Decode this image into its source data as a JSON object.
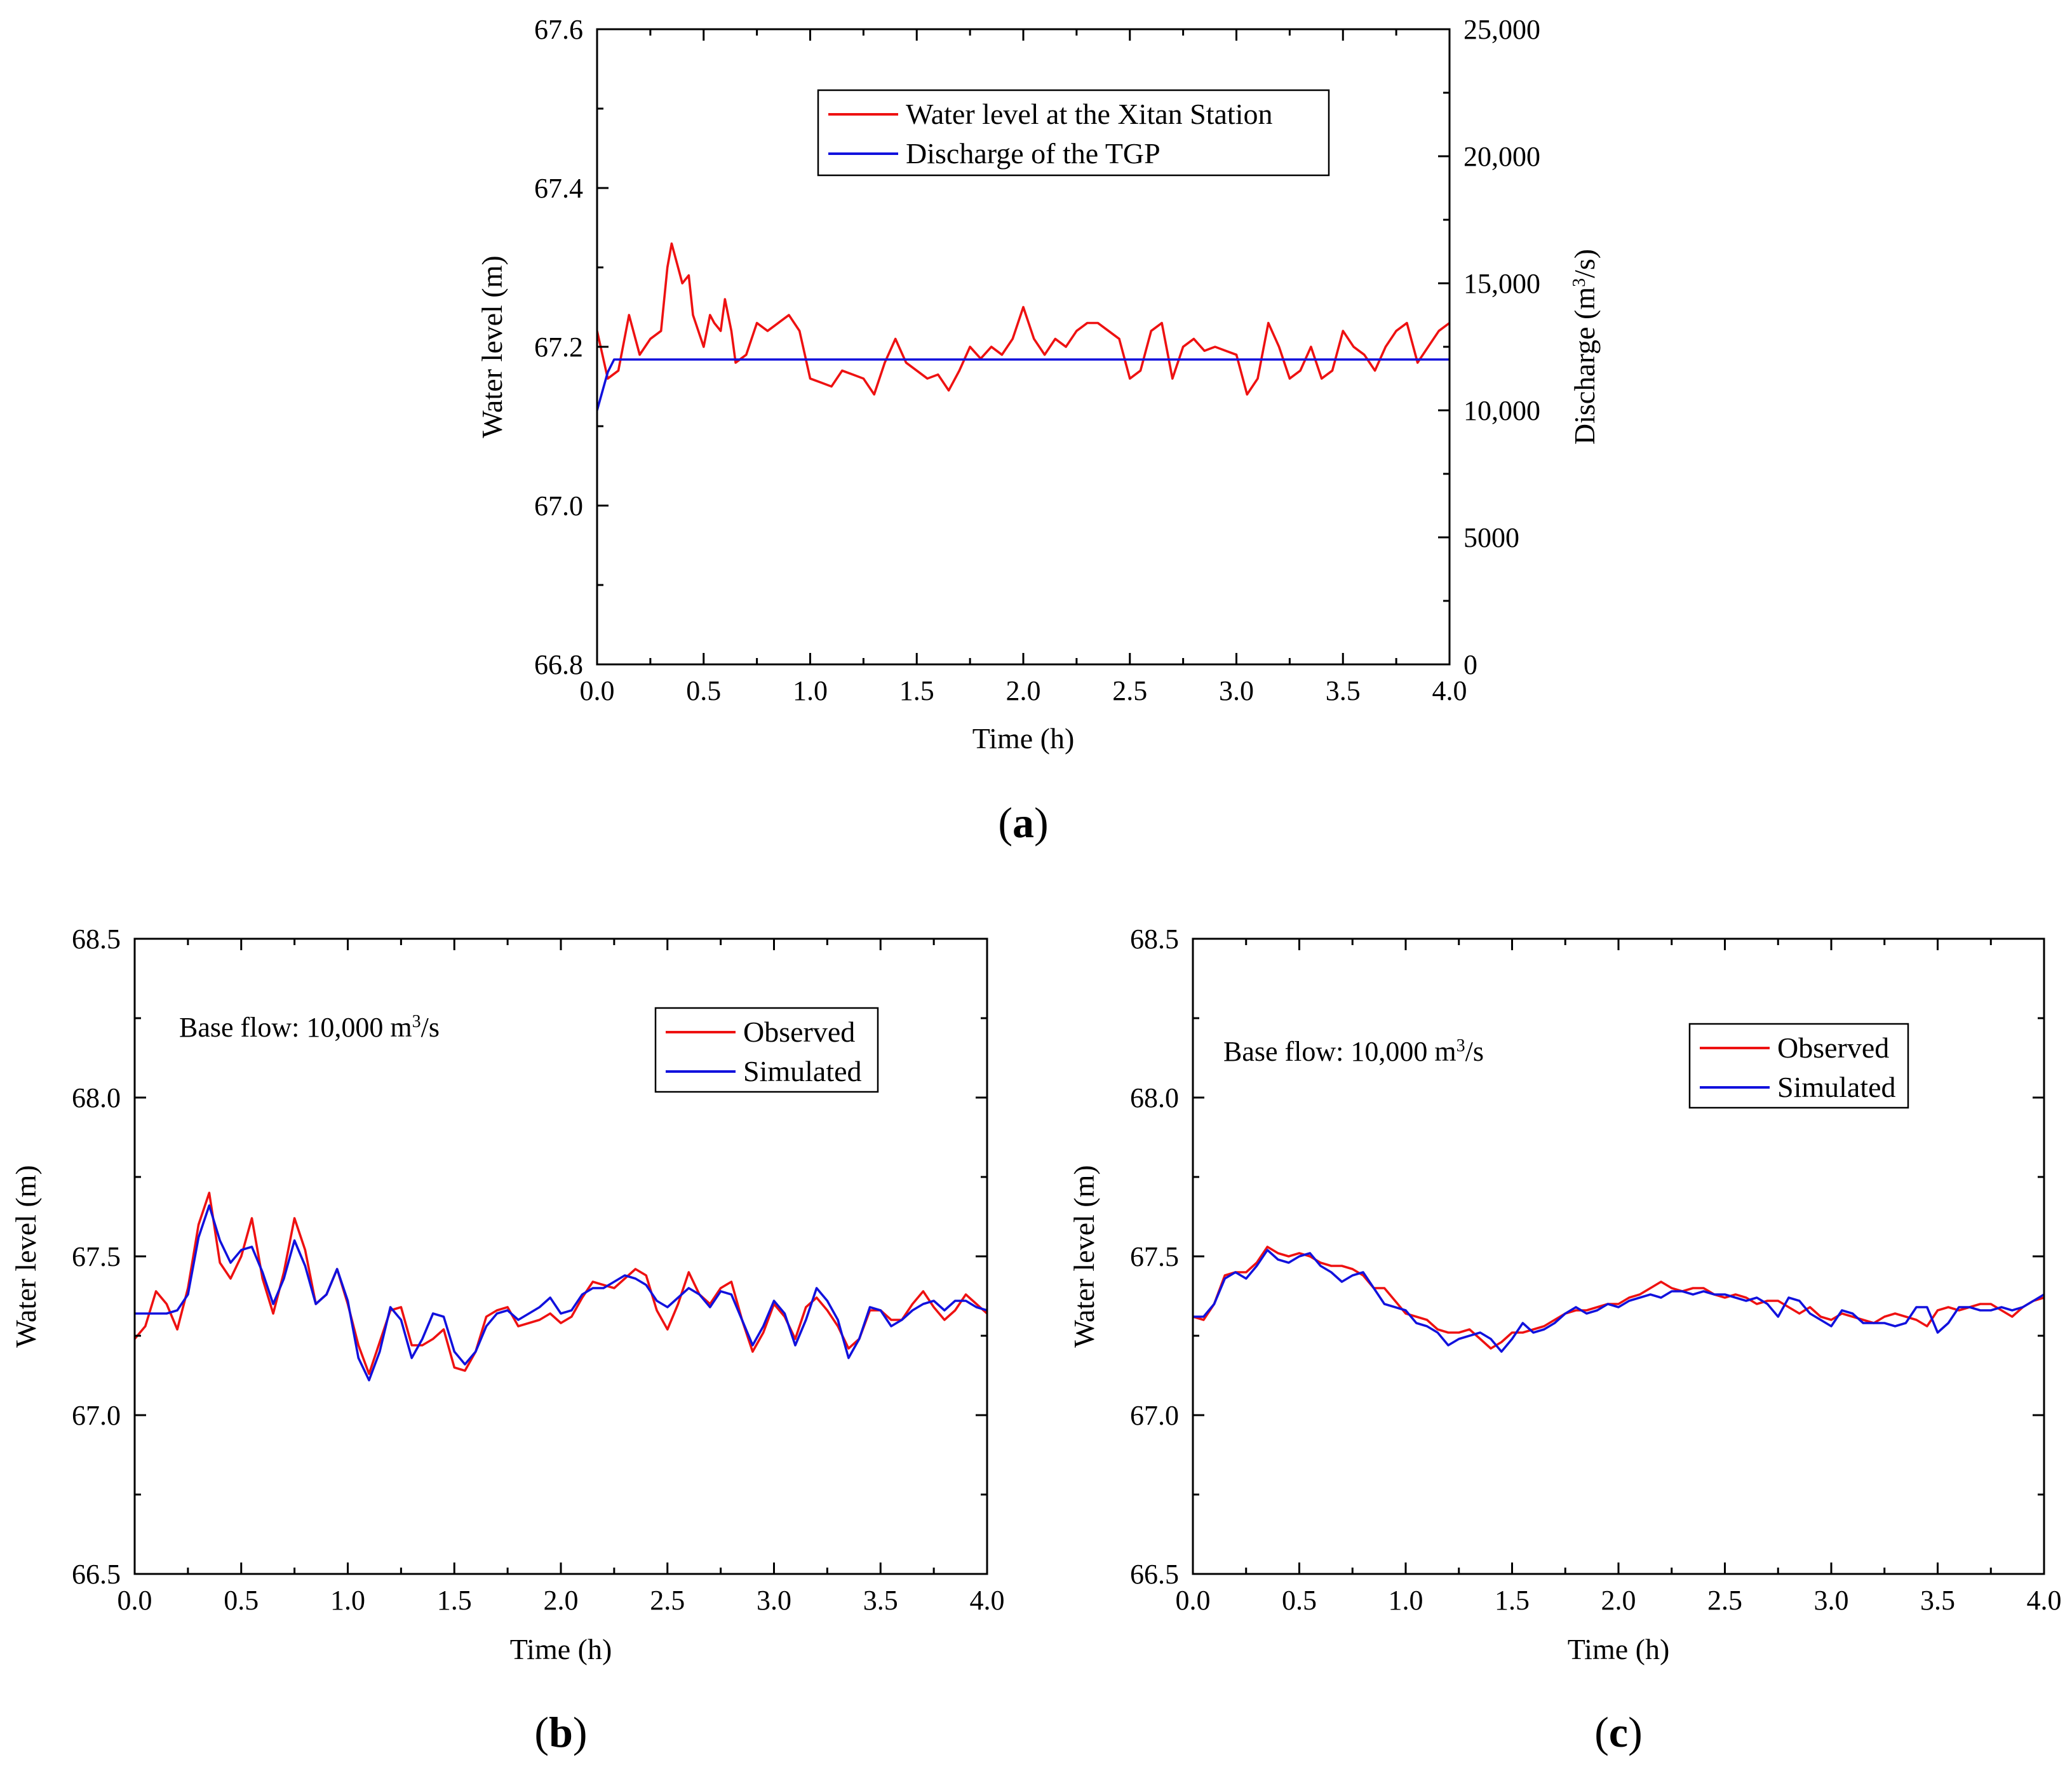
{
  "chart_data": [
    {
      "type": "line",
      "panel_label": "a",
      "xlabel": "Time (h)",
      "ylabel": "Water level (m)",
      "ylabel_right": "Discharge (m³/s)",
      "xlim": [
        0,
        4
      ],
      "ylim": [
        66.8,
        67.6
      ],
      "ylim_right": [
        0,
        25000
      ],
      "x_ticks": [
        "0.0",
        "0.5",
        "1.0",
        "1.5",
        "2.0",
        "2.5",
        "3.0",
        "3.5",
        "4.0"
      ],
      "y_ticks": [
        "66.8",
        "67.0",
        "67.2",
        "67.4",
        "67.6"
      ],
      "y_ticks_right": [
        "0",
        "5000",
        "10,000",
        "15,000",
        "20,000",
        "25,000"
      ],
      "legend": {
        "position": "top-right",
        "entries": [
          {
            "label": "Water level at the Xitan Station",
            "color": "#ee1111"
          },
          {
            "label": "Discharge of the TGP",
            "color": "#1111dd"
          }
        ]
      },
      "series": [
        {
          "name": "Water level at the Xitan Station",
          "axis": "left",
          "color": "#ee1111",
          "x": [
            0,
            0.05,
            0.1,
            0.15,
            0.2,
            0.25,
            0.3,
            0.33,
            0.35,
            0.38,
            0.4,
            0.43,
            0.45,
            0.5,
            0.53,
            0.55,
            0.58,
            0.6,
            0.63,
            0.65,
            0.7,
            0.75,
            0.8,
            0.85,
            0.9,
            0.95,
            1.0,
            1.05,
            1.1,
            1.15,
            1.2,
            1.25,
            1.3,
            1.35,
            1.4,
            1.45,
            1.5,
            1.55,
            1.6,
            1.65,
            1.7,
            1.75,
            1.8,
            1.85,
            1.9,
            1.95,
            2.0,
            2.05,
            2.1,
            2.15,
            2.2,
            2.25,
            2.3,
            2.35,
            2.4,
            2.45,
            2.5,
            2.55,
            2.6,
            2.65,
            2.7,
            2.75,
            2.8,
            2.85,
            2.9,
            2.95,
            3.0,
            3.05,
            3.1,
            3.15,
            3.2,
            3.25,
            3.3,
            3.35,
            3.4,
            3.45,
            3.5,
            3.55,
            3.6,
            3.65,
            3.7,
            3.75,
            3.8,
            3.85,
            3.9,
            3.95,
            4.0
          ],
          "y": [
            67.22,
            67.16,
            67.17,
            67.24,
            67.19,
            67.21,
            67.22,
            67.3,
            67.33,
            67.3,
            67.28,
            67.29,
            67.24,
            67.2,
            67.24,
            67.23,
            67.22,
            67.26,
            67.22,
            67.18,
            67.19,
            67.23,
            67.22,
            67.23,
            67.24,
            67.22,
            67.16,
            67.155,
            67.15,
            67.17,
            67.165,
            67.16,
            67.14,
            67.18,
            67.21,
            67.18,
            67.17,
            67.16,
            67.165,
            67.145,
            67.17,
            67.2,
            67.185,
            67.2,
            67.19,
            67.21,
            67.25,
            67.21,
            67.19,
            67.21,
            67.2,
            67.22,
            67.23,
            67.23,
            67.22,
            67.21,
            67.16,
            67.17,
            67.22,
            67.23,
            67.16,
            67.2,
            67.21,
            67.195,
            67.2,
            67.195,
            67.19,
            67.14,
            67.16,
            67.23,
            67.2,
            67.16,
            67.17,
            67.2,
            67.16,
            67.17,
            67.22,
            67.2,
            67.19,
            67.17,
            67.2,
            67.22,
            67.23,
            67.18,
            67.2,
            67.22,
            67.23
          ]
        },
        {
          "name": "Discharge of the TGP",
          "axis": "right",
          "color": "#1111dd",
          "x": [
            0,
            0.05,
            0.08,
            4.0
          ],
          "y": [
            10000,
            11500,
            12000,
            12000
          ]
        }
      ]
    },
    {
      "type": "line",
      "panel_label": "b",
      "annotation": "Base flow: 10,000 m³/s",
      "xlabel": "Time (h)",
      "ylabel": "Water level (m)",
      "xlim": [
        0,
        4
      ],
      "ylim": [
        66.5,
        68.5
      ],
      "x_ticks": [
        "0.0",
        "0.5",
        "1.0",
        "1.5",
        "2.0",
        "2.5",
        "3.0",
        "3.5",
        "4.0"
      ],
      "y_ticks": [
        "66.5",
        "67.0",
        "67.5",
        "68.0",
        "68.5"
      ],
      "legend": {
        "position": "top-right",
        "entries": [
          {
            "label": "Observed",
            "color": "#ee1111"
          },
          {
            "label": "Simulated",
            "color": "#1111dd"
          }
        ]
      },
      "series": [
        {
          "name": "Observed",
          "color": "#ee1111",
          "x": [
            0,
            0.05,
            0.1,
            0.15,
            0.2,
            0.25,
            0.3,
            0.35,
            0.4,
            0.45,
            0.5,
            0.55,
            0.6,
            0.65,
            0.7,
            0.75,
            0.8,
            0.85,
            0.9,
            0.95,
            1.0,
            1.05,
            1.1,
            1.15,
            1.2,
            1.25,
            1.3,
            1.35,
            1.4,
            1.45,
            1.5,
            1.55,
            1.6,
            1.65,
            1.7,
            1.75,
            1.8,
            1.85,
            1.9,
            1.95,
            2.0,
            2.05,
            2.1,
            2.15,
            2.2,
            2.25,
            2.3,
            2.35,
            2.4,
            2.45,
            2.5,
            2.55,
            2.6,
            2.65,
            2.7,
            2.75,
            2.8,
            2.85,
            2.9,
            2.95,
            3.0,
            3.05,
            3.1,
            3.15,
            3.2,
            3.25,
            3.3,
            3.35,
            3.4,
            3.45,
            3.5,
            3.55,
            3.6,
            3.65,
            3.7,
            3.75,
            3.8,
            3.85,
            3.9,
            3.95,
            4.0
          ],
          "y": [
            67.24,
            67.28,
            67.39,
            67.35,
            67.27,
            67.4,
            67.6,
            67.7,
            67.48,
            67.43,
            67.5,
            67.62,
            67.43,
            67.32,
            67.45,
            67.62,
            67.52,
            67.35,
            67.38,
            67.46,
            67.35,
            67.22,
            67.13,
            67.23,
            67.33,
            67.34,
            67.22,
            67.22,
            67.24,
            67.27,
            67.15,
            67.14,
            67.2,
            67.31,
            67.33,
            67.34,
            67.28,
            67.29,
            67.3,
            67.32,
            67.29,
            67.31,
            67.37,
            67.42,
            67.41,
            67.4,
            67.43,
            67.46,
            67.44,
            67.33,
            67.27,
            67.35,
            67.45,
            67.38,
            67.35,
            67.4,
            67.42,
            67.3,
            67.2,
            67.26,
            67.35,
            67.31,
            67.24,
            67.34,
            67.37,
            67.33,
            67.28,
            67.21,
            67.24,
            67.33,
            67.33,
            67.3,
            67.3,
            67.35,
            67.39,
            67.34,
            67.3,
            67.33,
            67.38,
            67.35,
            67.32
          ]
        },
        {
          "name": "Simulated",
          "color": "#1111dd",
          "x": [
            0,
            0.05,
            0.1,
            0.15,
            0.2,
            0.25,
            0.3,
            0.35,
            0.4,
            0.45,
            0.5,
            0.55,
            0.6,
            0.65,
            0.7,
            0.75,
            0.8,
            0.85,
            0.9,
            0.95,
            1.0,
            1.05,
            1.1,
            1.15,
            1.2,
            1.25,
            1.3,
            1.35,
            1.4,
            1.45,
            1.5,
            1.55,
            1.6,
            1.65,
            1.7,
            1.75,
            1.8,
            1.85,
            1.9,
            1.95,
            2.0,
            2.05,
            2.1,
            2.15,
            2.2,
            2.25,
            2.3,
            2.35,
            2.4,
            2.45,
            2.5,
            2.55,
            2.6,
            2.65,
            2.7,
            2.75,
            2.8,
            2.85,
            2.9,
            2.95,
            3.0,
            3.05,
            3.1,
            3.15,
            3.2,
            3.25,
            3.3,
            3.35,
            3.4,
            3.45,
            3.5,
            3.55,
            3.6,
            3.65,
            3.7,
            3.75,
            3.8,
            3.85,
            3.9,
            3.95,
            4.0
          ],
          "y": [
            67.32,
            67.32,
            67.32,
            67.32,
            67.33,
            67.38,
            67.56,
            67.66,
            67.55,
            67.48,
            67.52,
            67.53,
            67.45,
            67.35,
            67.43,
            67.55,
            67.47,
            67.35,
            67.38,
            67.46,
            67.36,
            67.18,
            67.11,
            67.2,
            67.34,
            67.3,
            67.18,
            67.24,
            67.32,
            67.31,
            67.2,
            67.16,
            67.2,
            67.28,
            67.32,
            67.33,
            67.3,
            67.32,
            67.34,
            67.37,
            67.32,
            67.33,
            67.38,
            67.4,
            67.4,
            67.42,
            67.44,
            67.43,
            67.41,
            67.36,
            67.34,
            67.37,
            67.4,
            67.38,
            67.34,
            67.39,
            67.38,
            67.3,
            67.22,
            67.28,
            67.36,
            67.32,
            67.22,
            67.3,
            67.4,
            67.36,
            67.3,
            67.18,
            67.24,
            67.34,
            67.33,
            67.28,
            67.3,
            67.33,
            67.35,
            67.36,
            67.33,
            67.36,
            67.36,
            67.34,
            67.33
          ]
        }
      ]
    },
    {
      "type": "line",
      "panel_label": "c",
      "annotation": "Base flow: 10,000 m³/s",
      "xlabel": "Time (h)",
      "ylabel": "Water level (m)",
      "xlim": [
        0,
        4
      ],
      "ylim": [
        66.5,
        68.5
      ],
      "x_ticks": [
        "0.0",
        "0.5",
        "1.0",
        "1.5",
        "2.0",
        "2.5",
        "3.0",
        "3.5",
        "4.0"
      ],
      "y_ticks": [
        "66.5",
        "67.0",
        "67.5",
        "68.0",
        "68.5"
      ],
      "legend": {
        "position": "top-right",
        "entries": [
          {
            "label": "Observed",
            "color": "#ee1111"
          },
          {
            "label": "Simulated",
            "color": "#1111dd"
          }
        ]
      },
      "series": [
        {
          "name": "Observed",
          "color": "#ee1111",
          "x": [
            0,
            0.05,
            0.1,
            0.15,
            0.2,
            0.25,
            0.3,
            0.35,
            0.4,
            0.45,
            0.5,
            0.55,
            0.6,
            0.65,
            0.7,
            0.75,
            0.8,
            0.85,
            0.9,
            0.95,
            1.0,
            1.05,
            1.1,
            1.15,
            1.2,
            1.25,
            1.3,
            1.35,
            1.4,
            1.45,
            1.5,
            1.55,
            1.6,
            1.65,
            1.7,
            1.75,
            1.8,
            1.85,
            1.9,
            1.95,
            2.0,
            2.05,
            2.1,
            2.15,
            2.2,
            2.25,
            2.3,
            2.35,
            2.4,
            2.45,
            2.5,
            2.55,
            2.6,
            2.65,
            2.7,
            2.75,
            2.8,
            2.85,
            2.9,
            2.95,
            3.0,
            3.05,
            3.1,
            3.15,
            3.2,
            3.25,
            3.3,
            3.35,
            3.4,
            3.45,
            3.5,
            3.55,
            3.6,
            3.65,
            3.7,
            3.75,
            3.8,
            3.85,
            3.9,
            3.95,
            4.0
          ],
          "y": [
            67.31,
            67.3,
            67.35,
            67.44,
            67.45,
            67.45,
            67.48,
            67.53,
            67.51,
            67.5,
            67.51,
            67.5,
            67.48,
            67.47,
            67.47,
            67.46,
            67.44,
            67.4,
            67.4,
            67.36,
            67.32,
            67.31,
            67.3,
            67.27,
            67.26,
            67.26,
            67.27,
            67.24,
            67.21,
            67.23,
            67.26,
            67.26,
            67.27,
            67.28,
            67.3,
            67.32,
            67.33,
            67.33,
            67.34,
            67.35,
            67.35,
            67.37,
            67.38,
            67.4,
            67.42,
            67.4,
            67.39,
            67.4,
            67.4,
            67.38,
            67.37,
            67.38,
            67.37,
            67.35,
            67.36,
            67.36,
            67.34,
            67.32,
            67.34,
            67.31,
            67.3,
            67.32,
            67.31,
            67.3,
            67.29,
            67.31,
            67.32,
            67.31,
            67.3,
            67.28,
            67.33,
            67.34,
            67.33,
            67.34,
            67.35,
            67.35,
            67.33,
            67.31,
            67.34,
            67.36,
            67.37
          ]
        },
        {
          "name": "Simulated",
          "color": "#1111dd",
          "x": [
            0,
            0.05,
            0.1,
            0.15,
            0.2,
            0.25,
            0.3,
            0.35,
            0.4,
            0.45,
            0.5,
            0.55,
            0.6,
            0.65,
            0.7,
            0.75,
            0.8,
            0.85,
            0.9,
            0.95,
            1.0,
            1.05,
            1.1,
            1.15,
            1.2,
            1.25,
            1.3,
            1.35,
            1.4,
            1.45,
            1.5,
            1.55,
            1.6,
            1.65,
            1.7,
            1.75,
            1.8,
            1.85,
            1.9,
            1.95,
            2.0,
            2.05,
            2.1,
            2.15,
            2.2,
            2.25,
            2.3,
            2.35,
            2.4,
            2.45,
            2.5,
            2.55,
            2.6,
            2.65,
            2.7,
            2.75,
            2.8,
            2.85,
            2.9,
            2.95,
            3.0,
            3.05,
            3.1,
            3.15,
            3.2,
            3.25,
            3.3,
            3.35,
            3.4,
            3.45,
            3.5,
            3.55,
            3.6,
            3.65,
            3.7,
            3.75,
            3.8,
            3.85,
            3.9,
            3.95,
            4.0
          ],
          "y": [
            67.31,
            67.31,
            67.35,
            67.43,
            67.45,
            67.43,
            67.47,
            67.52,
            67.49,
            67.48,
            67.5,
            67.51,
            67.47,
            67.45,
            67.42,
            67.44,
            67.45,
            67.4,
            67.35,
            67.34,
            67.33,
            67.29,
            67.28,
            67.26,
            67.22,
            67.24,
            67.25,
            67.26,
            67.24,
            67.2,
            67.24,
            67.29,
            67.26,
            67.27,
            67.29,
            67.32,
            67.34,
            67.32,
            67.33,
            67.35,
            67.34,
            67.36,
            67.37,
            67.38,
            67.37,
            67.39,
            67.39,
            67.38,
            67.39,
            67.38,
            67.38,
            67.37,
            67.36,
            67.37,
            67.35,
            67.31,
            67.37,
            67.36,
            67.32,
            67.3,
            67.28,
            67.33,
            67.32,
            67.29,
            67.29,
            67.29,
            67.28,
            67.29,
            67.34,
            67.34,
            67.26,
            67.29,
            67.34,
            67.34,
            67.33,
            67.33,
            67.34,
            67.33,
            67.34,
            67.36,
            67.38
          ]
        }
      ]
    }
  ]
}
